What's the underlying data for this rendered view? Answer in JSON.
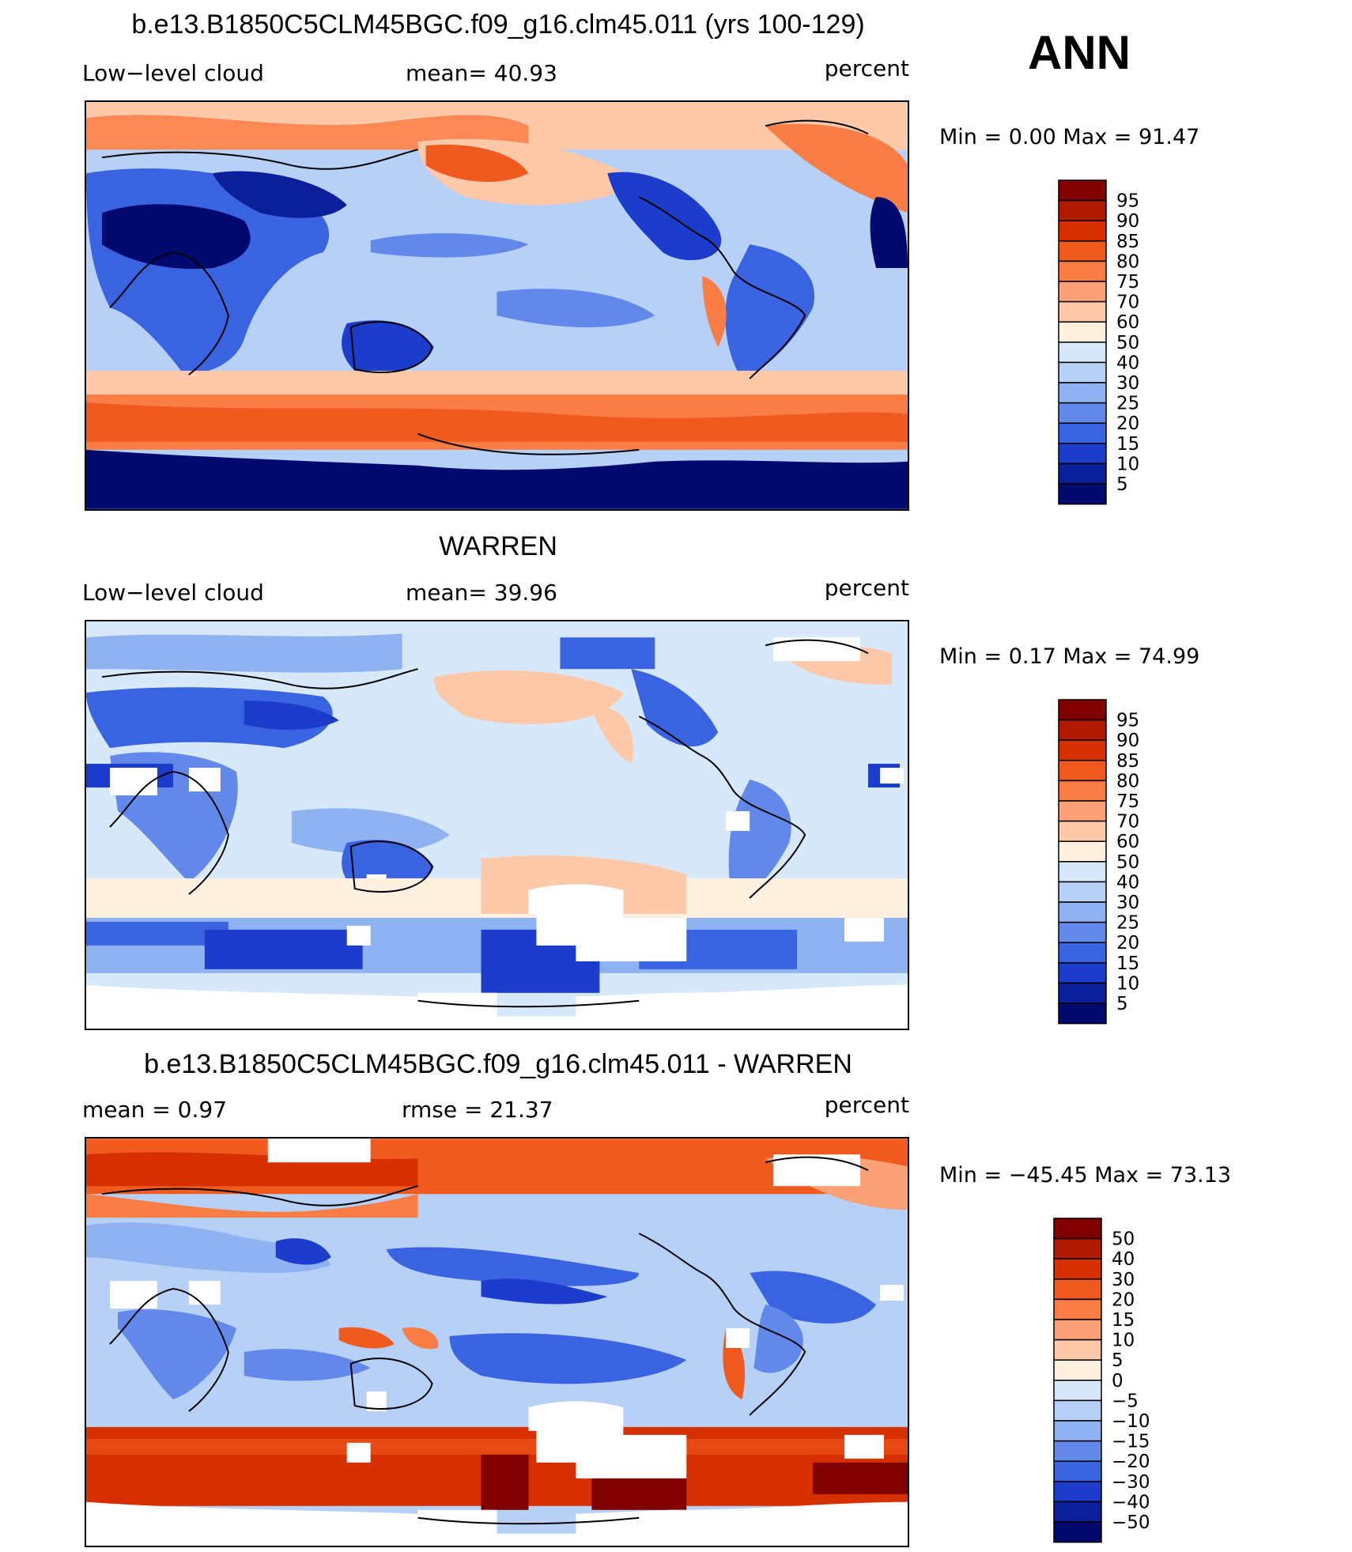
{
  "header": {
    "title": "b.e13.B1850C5CLM45BGC.f09_g16.clm45.011 (yrs 100-129)",
    "season": "ANN"
  },
  "panels": [
    {
      "id": "model",
      "left_label": "Low−level cloud",
      "center_label": "mean=   40.93",
      "units": "percent",
      "minmax": "Min  =     0.00  Max  =    91.47",
      "colorbar_labels": [
        "95",
        "90",
        "85",
        "80",
        "75",
        "70",
        "60",
        "50",
        "40",
        "30",
        "25",
        "20",
        "15",
        "10",
        "5"
      ],
      "colorbar_colors": [
        "#800000",
        "#b01a00",
        "#d63000",
        "#f05a1e",
        "#fa7d46",
        "#fca077",
        "#fdc9a8",
        "#fff0e0",
        "#d8e8fb",
        "#b7d0f7",
        "#8fb2f0",
        "#6289ea",
        "#3a63e2",
        "#1c3ccc",
        "#0c1f9a",
        "#000a6e"
      ]
    },
    {
      "id": "obs",
      "title": "WARREN",
      "left_label": "Low−level cloud",
      "center_label": "mean=   39.96",
      "units": "percent",
      "minmax": "Min  =     0.17  Max  =    74.99",
      "colorbar_labels": [
        "95",
        "90",
        "85",
        "80",
        "75",
        "70",
        "60",
        "50",
        "40",
        "30",
        "25",
        "20",
        "15",
        "10",
        "5"
      ],
      "colorbar_colors": [
        "#800000",
        "#b01a00",
        "#d63000",
        "#f05a1e",
        "#fa7d46",
        "#fca077",
        "#fdc9a8",
        "#fff0e0",
        "#d8e8fb",
        "#b7d0f7",
        "#8fb2f0",
        "#6289ea",
        "#3a63e2",
        "#1c3ccc",
        "#0c1f9a",
        "#000a6e"
      ]
    },
    {
      "id": "diff",
      "title": "b.e13.B1850C5CLM45BGC.f09_g16.clm45.011 - WARREN",
      "left_label": "mean  =     0.97",
      "center_label": "rmse  =    21.37",
      "units": "percent",
      "minmax": "Min  = −45.45  Max  =    73.13",
      "colorbar_labels": [
        "50",
        "40",
        "30",
        "20",
        "15",
        "10",
        "5",
        "0",
        "−5",
        "−10",
        "−15",
        "−20",
        "−30",
        "−40",
        "−50"
      ],
      "colorbar_colors": [
        "#800000",
        "#b01a00",
        "#d63000",
        "#f05a1e",
        "#fa7d46",
        "#fca077",
        "#fdc9a8",
        "#fff0e0",
        "#d8e8fb",
        "#b7d0f7",
        "#8fb2f0",
        "#6289ea",
        "#3a63e2",
        "#1c3ccc",
        "#0c1f9a",
        "#000a6e"
      ]
    }
  ]
}
